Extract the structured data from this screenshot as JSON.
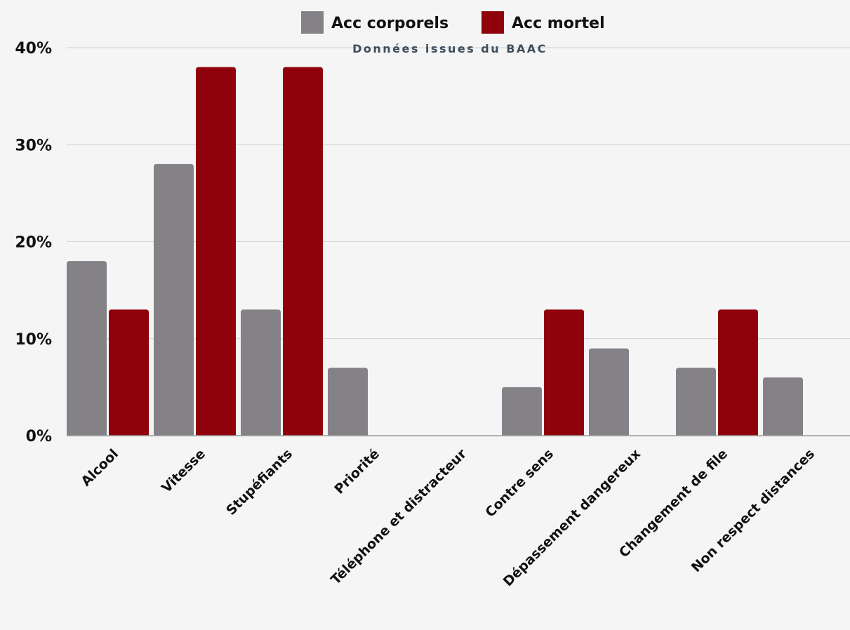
{
  "chart_data": {
    "type": "bar",
    "subtitle": "Données issues du BAAC",
    "categories": [
      "Alcool",
      "Vitesse",
      "Stupéfiants",
      "Priorité",
      "Téléphone et distracteur",
      "Contre sens",
      "Dépassement dangereux",
      "Changement de file",
      "Non respect distances"
    ],
    "series": [
      {
        "name": "Acc corporels",
        "color": "#848187",
        "values": [
          18,
          28,
          13,
          7,
          0,
          5,
          9,
          7,
          6
        ]
      },
      {
        "name": "Acc mortel",
        "color": "#8f020c",
        "values": [
          13,
          38,
          38,
          0,
          0,
          13,
          0,
          13,
          0
        ]
      }
    ],
    "ylim": [
      0,
      40
    ],
    "yticks": [
      "0%",
      "10%",
      "20%",
      "30%",
      "40%"
    ],
    "grid": true,
    "legend_position": "top-center"
  }
}
